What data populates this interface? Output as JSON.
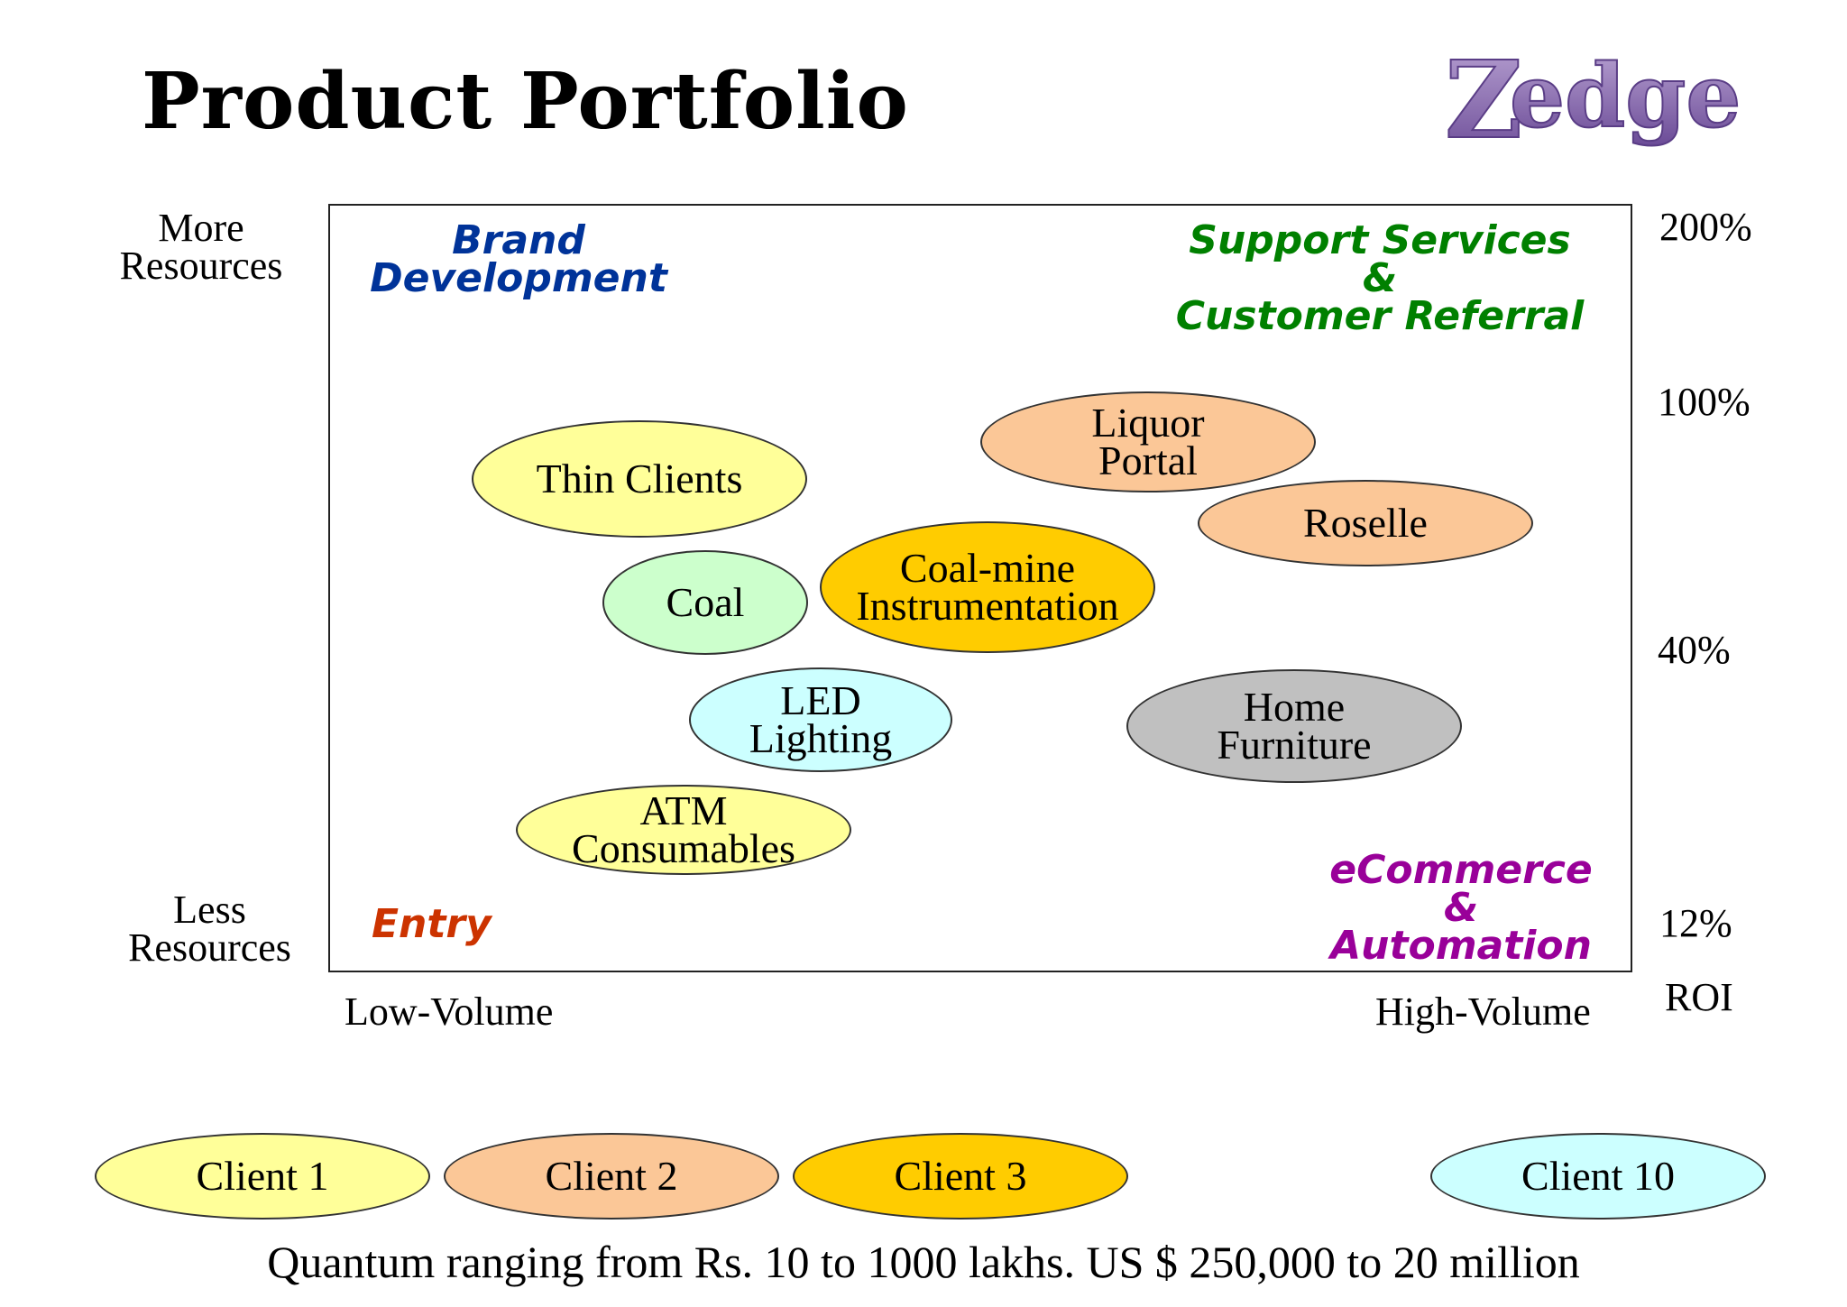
{
  "title": "Product Portfolio",
  "logo": {
    "text": "edge",
    "initial": "Z"
  },
  "axes": {
    "y_top": "More Resources",
    "y_bottom": "Less Resources",
    "x_left": "Low-Volume",
    "x_right": "High-Volume",
    "roi_label": "ROI",
    "roi_levels": [
      "200%",
      "100%",
      "40%",
      "12%"
    ]
  },
  "quadrants": {
    "top_left": "Brand Development",
    "top_right_line1": "Support Services",
    "top_right_line2": "&",
    "top_right_line3": "Customer Referral",
    "bottom_left": "Entry",
    "bottom_right_line1": "eCommerce",
    "bottom_right_line2": "&",
    "bottom_right_line3": "Automation"
  },
  "colors": {
    "brand_development": "#003399",
    "support_services": "#008000",
    "entry": "#cc3300",
    "ecommerce": "#990099",
    "yellow": "#ffff99",
    "peach": "#fbc797",
    "light_green": "#ccffcc",
    "light_cyan": "#ccffff",
    "gold": "#ffcc00",
    "gray": "#c0c0c0"
  },
  "products": [
    {
      "label": "Thin Clients",
      "fill": "yellow"
    },
    {
      "label": "Coal",
      "fill": "light_green"
    },
    {
      "label": "LED Lighting",
      "fill": "light_cyan"
    },
    {
      "label": "ATM Consumables",
      "fill": "yellow"
    },
    {
      "label": "Liquor Portal",
      "fill": "peach"
    },
    {
      "label": "Roselle",
      "fill": "peach"
    },
    {
      "label": "Coal-mine Instrumentation",
      "fill": "gold"
    },
    {
      "label": "Home Furniture",
      "fill": "gray"
    }
  ],
  "clients": [
    {
      "label": "Client 1",
      "fill": "yellow"
    },
    {
      "label": "Client 2",
      "fill": "peach"
    },
    {
      "label": "Client 3",
      "fill": "gold"
    },
    {
      "label": "Client 10",
      "fill": "light_cyan"
    }
  ],
  "footer": "Quantum ranging from Rs. 10 to 1000 lakhs.  US $ 250,000 to 20 million"
}
